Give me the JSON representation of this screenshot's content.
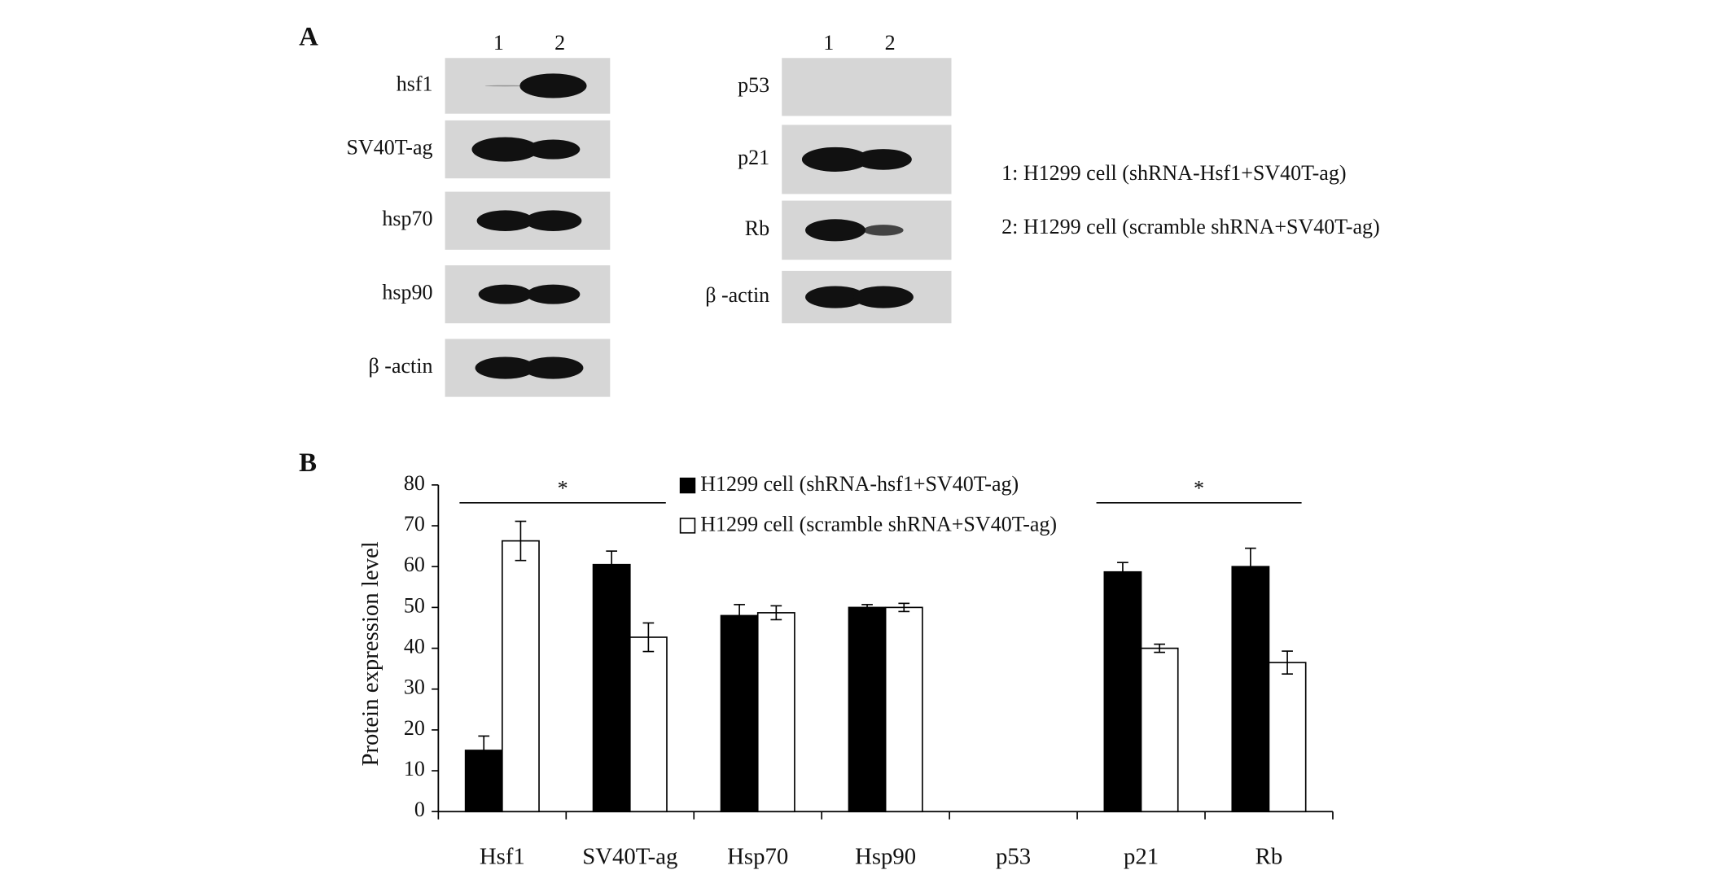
{
  "panel_a": {
    "label": "A",
    "left_blot": {
      "lanes": [
        "1",
        "2"
      ],
      "rows": [
        "hsf1",
        "SV40T-ag",
        "hsp70",
        "hsp90",
        "β -actin"
      ]
    },
    "right_blot": {
      "lanes": [
        "1",
        "2"
      ],
      "rows": [
        "p53",
        "p21",
        "Rb",
        "β -actin"
      ]
    },
    "key": [
      "1: H1299 cell (shRNA-Hsf1+SV40T-ag)",
      "2: H1299 cell (scramble shRNA+SV40T-ag)"
    ]
  },
  "chart_data": {
    "type": "bar",
    "panel_label": "B",
    "ylabel": "Protein expression level",
    "categories": [
      "Hsf1",
      "SV40T-ag",
      "Hsp70",
      "Hsp90",
      "p53",
      "p21",
      "Rb"
    ],
    "series": [
      {
        "name": "H1299 cell (shRNA-hsf1+SV40T-ag)",
        "color": "#000000",
        "values": [
          15,
          60.5,
          48,
          50,
          null,
          58.7,
          60
        ],
        "errors": [
          3.5,
          3.3,
          2.7,
          0.7,
          null,
          2.3,
          4.5
        ]
      },
      {
        "name": "H1299 cell (scramble shRNA+SV40T-ag)",
        "color": "#ffffff",
        "values": [
          66.3,
          42.7,
          48.7,
          50,
          null,
          40,
          36.5
        ],
        "errors": [
          4.8,
          3.5,
          1.7,
          1,
          null,
          1,
          2.8
        ]
      }
    ],
    "ylim": [
      0,
      80
    ],
    "yticks": [
      0,
      10,
      20,
      30,
      40,
      50,
      60,
      70,
      80
    ],
    "annotations": [
      "*",
      "*"
    ]
  }
}
